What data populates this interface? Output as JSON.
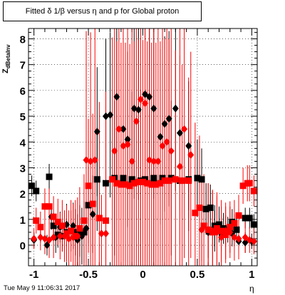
{
  "title": "Fitted δ 1/β versus η and p for Global proton",
  "footer": "Tue May  9 11:06:31 2017",
  "xlabel": "η",
  "ylabel_main": "Z",
  "ylabel_sub": "dBetaInv",
  "colors": {
    "series1": "#000000",
    "series2": "#ff0000",
    "grid": "#000000",
    "frame": "#000000"
  },
  "chart_data": {
    "type": "scatter",
    "xlim": [
      -1.05,
      1.05
    ],
    "ylim": [
      -0.8,
      8.4
    ],
    "grid": true,
    "x_ticks": [
      -1,
      -0.5,
      0,
      0.5,
      1
    ],
    "y_ticks": [
      0,
      1,
      2,
      3,
      4,
      5,
      6,
      7,
      8
    ],
    "series": [
      {
        "marker": "square",
        "color": "#000000",
        "points": [
          {
            "x": -1.02,
            "y": 2.3,
            "err": 0.4
          },
          {
            "x": -0.98,
            "y": 2.1,
            "err": 0.4
          },
          {
            "x": -0.86,
            "y": 2.65,
            "err": 0.5
          },
          {
            "x": -0.82,
            "y": 0.75,
            "err": 0.5
          },
          {
            "x": -0.78,
            "y": 0.4,
            "err": 0.5
          },
          {
            "x": -0.74,
            "y": 0.35,
            "err": 0.6
          },
          {
            "x": -0.7,
            "y": 0.5,
            "err": 0.7
          },
          {
            "x": -0.66,
            "y": 0.55,
            "err": 0.8
          },
          {
            "x": -0.62,
            "y": 0.5,
            "err": 0.9
          },
          {
            "x": -0.58,
            "y": 0.55,
            "err": 1.0
          },
          {
            "x": -0.54,
            "y": 0.5,
            "err": 1.2
          },
          {
            "x": -0.5,
            "y": 1.55,
            "err": 1.5
          },
          {
            "x": -0.42,
            "y": 2.55,
            "err": 2.0
          },
          {
            "x": -0.34,
            "y": 2.4,
            "err": 2.5
          },
          {
            "x": -0.26,
            "y": 2.6,
            "err": 3.0
          },
          {
            "x": -0.18,
            "y": 2.6,
            "err": 3.2
          },
          {
            "x": -0.1,
            "y": 2.55,
            "err": 3.4
          },
          {
            "x": -0.02,
            "y": 2.5,
            "err": 3.5
          },
          {
            "x": 0.02,
            "y": 2.55,
            "err": 3.5
          },
          {
            "x": 0.1,
            "y": 2.6,
            "err": 3.4
          },
          {
            "x": 0.18,
            "y": 2.6,
            "err": 3.2
          },
          {
            "x": 0.26,
            "y": 2.6,
            "err": 3.0
          },
          {
            "x": 0.34,
            "y": 2.5,
            "err": 2.5
          },
          {
            "x": 0.42,
            "y": 2.55,
            "err": 2.0
          },
          {
            "x": 0.5,
            "y": 2.6,
            "err": 1.5
          },
          {
            "x": 0.54,
            "y": 2.55,
            "err": 1.2
          },
          {
            "x": 0.58,
            "y": 1.4,
            "err": 1.0
          },
          {
            "x": 0.62,
            "y": 1.45,
            "err": 0.9
          },
          {
            "x": 0.66,
            "y": 0.75,
            "err": 0.8
          },
          {
            "x": 0.7,
            "y": 0.8,
            "err": 0.7
          },
          {
            "x": 0.74,
            "y": 0.65,
            "err": 0.6
          },
          {
            "x": 0.78,
            "y": 0.6,
            "err": 0.5
          },
          {
            "x": 0.82,
            "y": 0.9,
            "err": 0.5
          },
          {
            "x": 0.86,
            "y": 0.6,
            "err": 0.5
          },
          {
            "x": 0.94,
            "y": 1.05,
            "err": 0.4
          },
          {
            "x": 0.98,
            "y": 1.05,
            "err": 0.4
          },
          {
            "x": 1.02,
            "y": 0.8,
            "err": 0.4
          }
        ]
      },
      {
        "marker": "diamond",
        "color": "#000000",
        "points": [
          {
            "x": -1.0,
            "y": 0.2,
            "err": 0.3
          },
          {
            "x": -0.88,
            "y": 0.0,
            "err": 0.4
          },
          {
            "x": -0.84,
            "y": 1.1,
            "err": 0.5
          },
          {
            "x": -0.8,
            "y": 0.3,
            "err": 0.6
          },
          {
            "x": -0.76,
            "y": 0.7,
            "err": 0.6
          },
          {
            "x": -0.7,
            "y": 0.8,
            "err": 0.8
          },
          {
            "x": -0.64,
            "y": 0.75,
            "err": 0.9
          },
          {
            "x": -0.6,
            "y": 0.2,
            "err": 1.0
          },
          {
            "x": -0.56,
            "y": 0.35,
            "err": 1.1
          },
          {
            "x": -0.52,
            "y": 0.65,
            "err": 1.2
          },
          {
            "x": -0.46,
            "y": 1.2,
            "err": 1.5
          },
          {
            "x": -0.42,
            "y": 4.4,
            "err": 2.5
          },
          {
            "x": -0.34,
            "y": 5.0,
            "err": 3.0
          },
          {
            "x": -0.3,
            "y": 5.05,
            "err": 3.2
          },
          {
            "x": -0.24,
            "y": 5.75,
            "err": 3.4
          },
          {
            "x": -0.18,
            "y": 4.5,
            "err": 3.4
          },
          {
            "x": -0.14,
            "y": 4.1,
            "err": 3.4
          },
          {
            "x": -0.08,
            "y": 5.3,
            "err": 3.5
          },
          {
            "x": -0.04,
            "y": 5.25,
            "err": 3.5
          },
          {
            "x": 0.02,
            "y": 5.85,
            "err": 3.5
          },
          {
            "x": 0.06,
            "y": 5.75,
            "err": 3.5
          },
          {
            "x": 0.1,
            "y": 5.3,
            "err": 3.5
          },
          {
            "x": 0.16,
            "y": 4.2,
            "err": 3.4
          },
          {
            "x": 0.2,
            "y": 4.7,
            "err": 3.4
          },
          {
            "x": 0.24,
            "y": 4.9,
            "err": 3.4
          },
          {
            "x": 0.3,
            "y": 5.3,
            "err": 3.2
          },
          {
            "x": 0.34,
            "y": 4.35,
            "err": 3.0
          },
          {
            "x": 0.42,
            "y": 3.85,
            "err": 2.5
          },
          {
            "x": 0.54,
            "y": 0.6,
            "err": 1.2
          },
          {
            "x": 0.6,
            "y": 0.5,
            "err": 1.0
          },
          {
            "x": 0.66,
            "y": 0.55,
            "err": 0.8
          },
          {
            "x": 0.72,
            "y": 0.45,
            "err": 0.7
          },
          {
            "x": 0.76,
            "y": 0.55,
            "err": 0.6
          },
          {
            "x": 0.82,
            "y": 0.45,
            "err": 0.5
          },
          {
            "x": 0.88,
            "y": 0.15,
            "err": 0.4
          },
          {
            "x": 0.94,
            "y": 0.1,
            "err": 0.4
          },
          {
            "x": 1.0,
            "y": 0.15,
            "err": 0.3
          }
        ]
      },
      {
        "marker": "square",
        "color": "#ff0000",
        "points": [
          {
            "x": -0.98,
            "y": 0.95,
            "err": 0.5
          },
          {
            "x": -0.94,
            "y": 0.7,
            "err": 0.6
          },
          {
            "x": -0.9,
            "y": 1.5,
            "err": 0.7
          },
          {
            "x": -0.86,
            "y": 1.5,
            "err": 0.7
          },
          {
            "x": -0.82,
            "y": 1.1,
            "err": 0.8
          },
          {
            "x": -0.78,
            "y": 0.9,
            "err": 0.9
          },
          {
            "x": -0.74,
            "y": 0.75,
            "err": 1.0
          },
          {
            "x": -0.7,
            "y": 0.45,
            "err": 1.1
          },
          {
            "x": -0.66,
            "y": 0.55,
            "err": 1.2
          },
          {
            "x": -0.62,
            "y": 0.35,
            "err": 1.4
          },
          {
            "x": -0.58,
            "y": 0.65,
            "err": 1.6
          },
          {
            "x": -0.54,
            "y": 0.95,
            "err": 1.8
          },
          {
            "x": -0.5,
            "y": 2.3,
            "err": 2.6
          },
          {
            "x": -0.46,
            "y": 1.6,
            "err": 3.5
          },
          {
            "x": -0.4,
            "y": 1.05,
            "err": 4.5
          },
          {
            "x": -0.34,
            "y": 0.95,
            "err": 5.0
          },
          {
            "x": -0.28,
            "y": 2.55,
            "err": 5.5
          },
          {
            "x": -0.24,
            "y": 2.4,
            "err": 5.5
          },
          {
            "x": -0.2,
            "y": 2.35,
            "err": 5.5
          },
          {
            "x": -0.16,
            "y": 2.35,
            "err": 5.5
          },
          {
            "x": -0.12,
            "y": 2.3,
            "err": 5.5
          },
          {
            "x": -0.08,
            "y": 2.4,
            "err": 5.5
          },
          {
            "x": -0.04,
            "y": 2.45,
            "err": 5.5
          },
          {
            "x": 0.0,
            "y": 2.45,
            "err": 5.5
          },
          {
            "x": 0.04,
            "y": 2.4,
            "err": 5.5
          },
          {
            "x": 0.08,
            "y": 2.35,
            "err": 5.5
          },
          {
            "x": 0.12,
            "y": 2.35,
            "err": 5.5
          },
          {
            "x": 0.16,
            "y": 2.4,
            "err": 5.5
          },
          {
            "x": 0.2,
            "y": 2.5,
            "err": 5.5
          },
          {
            "x": 0.24,
            "y": 2.5,
            "err": 5.5
          },
          {
            "x": 0.3,
            "y": 2.55,
            "err": 5.0
          },
          {
            "x": 0.36,
            "y": 2.5,
            "err": 4.5
          },
          {
            "x": 0.42,
            "y": 2.5,
            "err": 4.0
          },
          {
            "x": 0.48,
            "y": 1.25,
            "err": 3.5
          },
          {
            "x": 0.52,
            "y": 1.45,
            "err": 2.8
          },
          {
            "x": 0.56,
            "y": 0.75,
            "err": 2.0
          },
          {
            "x": 0.6,
            "y": 0.6,
            "err": 1.8
          },
          {
            "x": 0.64,
            "y": 0.5,
            "err": 1.6
          },
          {
            "x": 0.68,
            "y": 0.65,
            "err": 1.4
          },
          {
            "x": 0.72,
            "y": 0.55,
            "err": 1.2
          },
          {
            "x": 0.76,
            "y": 0.4,
            "err": 1.1
          },
          {
            "x": 0.8,
            "y": 0.7,
            "err": 1.0
          },
          {
            "x": 0.84,
            "y": 0.85,
            "err": 0.9
          },
          {
            "x": 0.88,
            "y": 1.15,
            "err": 0.8
          },
          {
            "x": 0.92,
            "y": 2.3,
            "err": 0.7
          },
          {
            "x": 0.96,
            "y": 2.4,
            "err": 0.7
          },
          {
            "x": 0.98,
            "y": 2.4,
            "err": 0.7
          },
          {
            "x": 1.02,
            "y": 2.1,
            "err": 0.6
          }
        ]
      },
      {
        "marker": "diamond",
        "color": "#ff0000",
        "points": [
          {
            "x": -1.0,
            "y": 0.25,
            "err": 0.4
          },
          {
            "x": -0.94,
            "y": 0.3,
            "err": 0.5
          },
          {
            "x": -0.9,
            "y": 0.25,
            "err": 0.6
          },
          {
            "x": -0.86,
            "y": 0.2,
            "err": 0.7
          },
          {
            "x": -0.82,
            "y": 0.3,
            "err": 0.8
          },
          {
            "x": -0.76,
            "y": 0.35,
            "err": 0.9
          },
          {
            "x": -0.72,
            "y": 0.35,
            "err": 1.0
          },
          {
            "x": -0.68,
            "y": 0.25,
            "err": 1.1
          },
          {
            "x": -0.64,
            "y": 0.3,
            "err": 1.3
          },
          {
            "x": -0.6,
            "y": 0.35,
            "err": 1.5
          },
          {
            "x": -0.52,
            "y": 3.3,
            "err": 5.0
          },
          {
            "x": -0.48,
            "y": 3.25,
            "err": 5.0
          },
          {
            "x": -0.44,
            "y": 3.3,
            "err": 5.5
          },
          {
            "x": -0.38,
            "y": 0.45,
            "err": 1.5
          },
          {
            "x": -0.34,
            "y": 0.45,
            "err": 1.5
          },
          {
            "x": -0.26,
            "y": 3.65,
            "err": 6.5
          },
          {
            "x": -0.22,
            "y": 4.5,
            "err": 6.5
          },
          {
            "x": -0.18,
            "y": 3.85,
            "err": 6.5
          },
          {
            "x": -0.14,
            "y": 3.9,
            "err": 6.5
          },
          {
            "x": -0.1,
            "y": 3.25,
            "err": 6.5
          },
          {
            "x": -0.06,
            "y": 4.8,
            "err": 6.5
          },
          {
            "x": -0.02,
            "y": 5.65,
            "err": 6.5
          },
          {
            "x": 0.02,
            "y": 5.5,
            "err": 6.5
          },
          {
            "x": 0.06,
            "y": 3.3,
            "err": 6.5
          },
          {
            "x": 0.1,
            "y": 3.25,
            "err": 6.5
          },
          {
            "x": 0.14,
            "y": 3.25,
            "err": 6.5
          },
          {
            "x": 0.18,
            "y": 3.85,
            "err": 6.5
          },
          {
            "x": 0.22,
            "y": 4.0,
            "err": 6.5
          },
          {
            "x": 0.26,
            "y": 3.65,
            "err": 6.0
          },
          {
            "x": 0.34,
            "y": 3.05,
            "err": 5.5
          },
          {
            "x": 0.38,
            "y": 4.5,
            "err": 5.0
          },
          {
            "x": 0.44,
            "y": 3.5,
            "err": 4.0
          },
          {
            "x": 0.54,
            "y": 0.6,
            "err": 2.0
          },
          {
            "x": 0.6,
            "y": 0.6,
            "err": 1.8
          },
          {
            "x": 0.64,
            "y": 0.55,
            "err": 1.6
          },
          {
            "x": 0.68,
            "y": 0.5,
            "err": 1.4
          },
          {
            "x": 0.72,
            "y": 0.3,
            "err": 1.2
          },
          {
            "x": 0.76,
            "y": 0.55,
            "err": 1.1
          },
          {
            "x": 0.8,
            "y": 0.5,
            "err": 1.0
          },
          {
            "x": 0.84,
            "y": 0.3,
            "err": 0.9
          },
          {
            "x": 0.88,
            "y": 0.25,
            "err": 0.8
          },
          {
            "x": 0.94,
            "y": 0.3,
            "err": 0.6
          },
          {
            "x": 0.98,
            "y": 0.2,
            "err": 0.5
          },
          {
            "x": 1.02,
            "y": 0.15,
            "err": 0.5
          }
        ]
      }
    ]
  }
}
